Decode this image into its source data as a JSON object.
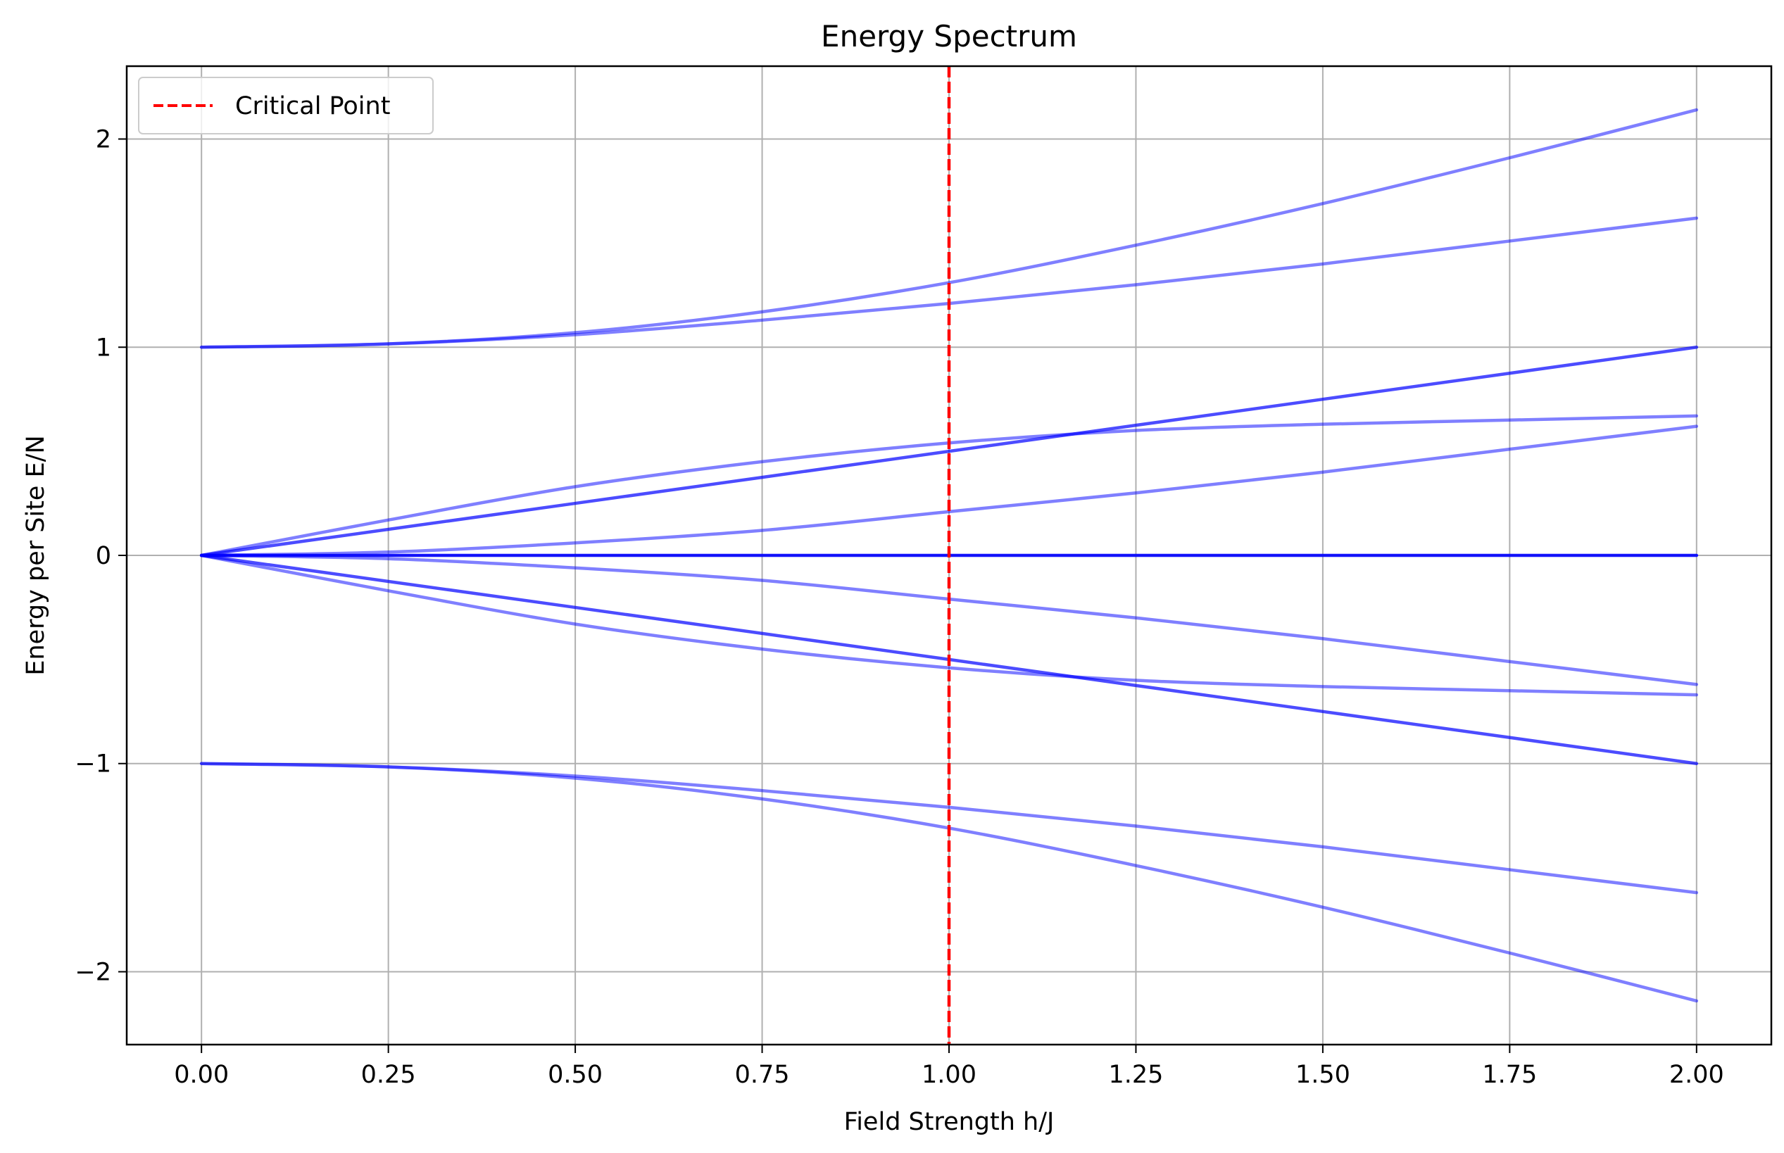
{
  "chart_data": {
    "type": "line",
    "title": "Energy Spectrum",
    "xlabel": "Field Strength h/J",
    "ylabel": "Energy per Site E/N",
    "xlim": [
      -0.1,
      2.1
    ],
    "ylim": [
      -2.35,
      2.35
    ],
    "x_ticks": [
      0.0,
      0.25,
      0.5,
      0.75,
      1.0,
      1.25,
      1.5,
      1.75,
      2.0
    ],
    "x_tick_labels": [
      "0.00",
      "0.25",
      "0.50",
      "0.75",
      "1.00",
      "1.25",
      "1.50",
      "1.75",
      "2.00"
    ],
    "y_ticks": [
      -2,
      -1,
      0,
      1,
      2
    ],
    "y_tick_labels": [
      "−2",
      "−1",
      "0",
      "1",
      "2"
    ],
    "grid": true,
    "legend_placement": "top-left",
    "line_color": "#0000ff",
    "critical_color": "#ff0000",
    "x": [
      0.0,
      0.25,
      0.5,
      0.75,
      1.0,
      1.25,
      1.5,
      1.75,
      2.0
    ],
    "series": [
      {
        "values": [
          1.0,
          1.016,
          1.07,
          1.17,
          1.31,
          1.49,
          1.69,
          1.91,
          2.14
        ],
        "opacity": 0.5
      },
      {
        "values": [
          1.0,
          1.016,
          1.06,
          1.13,
          1.21,
          1.3,
          1.4,
          1.51,
          1.62
        ],
        "opacity": 0.5
      },
      {
        "values": [
          0.0,
          0.125,
          0.25,
          0.375,
          0.5,
          0.625,
          0.75,
          0.875,
          1.0
        ],
        "opacity": 0.7
      },
      {
        "values": [
          0.0,
          0.17,
          0.33,
          0.45,
          0.54,
          0.6,
          0.63,
          0.65,
          0.67
        ],
        "opacity": 0.5
      },
      {
        "values": [
          0.0,
          0.016,
          0.06,
          0.12,
          0.21,
          0.3,
          0.4,
          0.51,
          0.62
        ],
        "opacity": 0.5
      },
      {
        "values": [
          0.0,
          0.0,
          0.0,
          0.0,
          0.0,
          0.0,
          0.0,
          0.0,
          0.0
        ],
        "opacity": 0.9
      },
      {
        "values": [
          0.0,
          -0.016,
          -0.06,
          -0.12,
          -0.21,
          -0.3,
          -0.4,
          -0.51,
          -0.62
        ],
        "opacity": 0.5
      },
      {
        "values": [
          0.0,
          -0.17,
          -0.33,
          -0.45,
          -0.54,
          -0.6,
          -0.63,
          -0.65,
          -0.67
        ],
        "opacity": 0.5
      },
      {
        "values": [
          0.0,
          -0.125,
          -0.25,
          -0.375,
          -0.5,
          -0.625,
          -0.75,
          -0.875,
          -1.0
        ],
        "opacity": 0.7
      },
      {
        "values": [
          -1.0,
          -1.016,
          -1.06,
          -1.13,
          -1.21,
          -1.3,
          -1.4,
          -1.51,
          -1.62
        ],
        "opacity": 0.5
      },
      {
        "values": [
          -1.0,
          -1.016,
          -1.07,
          -1.17,
          -1.31,
          -1.49,
          -1.69,
          -1.91,
          -2.14
        ],
        "opacity": 0.5
      }
    ],
    "critical_point": {
      "x": 1.0,
      "label": "Critical Point"
    }
  }
}
